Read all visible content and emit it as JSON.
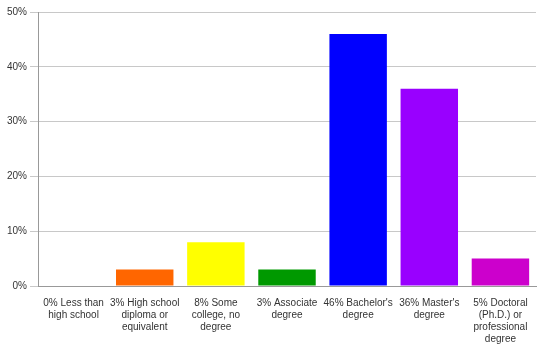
{
  "chart_data": {
    "type": "bar",
    "categories": [
      "0% Less than high school",
      "3% High school diploma or equivalent",
      "8% Some college, no degree",
      "3% Associate degree",
      "46% Bachelor's degree",
      "36% Master's degree",
      "5% Doctoral (Ph.D.) or professional degree"
    ],
    "values": [
      0,
      3,
      8,
      3,
      46,
      36,
      5
    ],
    "colors": [
      "#ff0000",
      "#ff6600",
      "#ffff00",
      "#009900",
      "#0000ff",
      "#9900ff",
      "#cc00cc"
    ],
    "ylim": [
      0,
      50
    ],
    "yticks": [
      {
        "value": 0,
        "label": "0%"
      },
      {
        "value": 10,
        "label": "10%"
      },
      {
        "value": 20,
        "label": "20%"
      },
      {
        "value": 30,
        "label": "30%"
      },
      {
        "value": 40,
        "label": "40%"
      },
      {
        "value": 50,
        "label": "50%"
      }
    ],
    "grid": true
  }
}
